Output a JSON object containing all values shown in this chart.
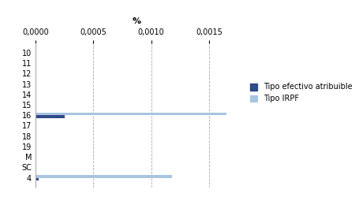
{
  "xlabel": "%",
  "categories": [
    "10",
    "11",
    "12",
    "13",
    "14",
    "15",
    "16",
    "17",
    "18",
    "19",
    "M",
    "SC",
    "4"
  ],
  "series1_name": "Tipo efectivo atribuible",
  "series1_color": "#2E4A8B",
  "series2_name": "Tipo IRPF",
  "series2_color": "#A8C4E0",
  "series1_values": [
    0,
    0,
    0,
    0,
    0,
    0,
    0.00025,
    0,
    0,
    0,
    0,
    0,
    2.5e-05
  ],
  "series2_values": [
    0,
    0,
    0,
    0,
    0,
    0,
    0.00165,
    0,
    0,
    0,
    0,
    0,
    0.00118
  ],
  "xlim": [
    0,
    0.00175
  ],
  "xticks": [
    0.0,
    0.0005,
    0.001,
    0.0015
  ],
  "xtick_labels": [
    "0,0000",
    "0,0005",
    "0,0010",
    "0,0015"
  ],
  "background_color": "#FFFFFF",
  "grid_color": "#AAAAAA",
  "title_fontsize": 10,
  "axis_fontsize": 8,
  "tick_fontsize": 7
}
